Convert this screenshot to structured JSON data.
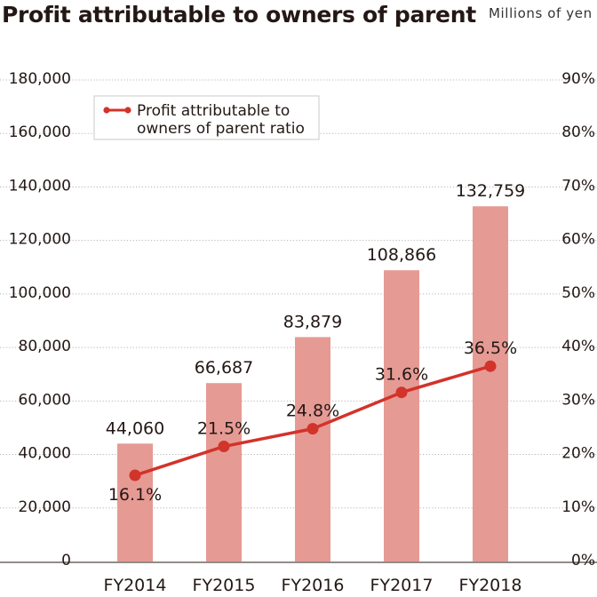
{
  "title": "Profit attributable to owners of parent",
  "unit": "Millions of yen",
  "legend": {
    "line1": "Profit attributable to",
    "line2": "owners of parent ratio"
  },
  "colors": {
    "bar": "#e69a94",
    "line": "#d2332a",
    "grid": "#b5b5b5",
    "text": "#231815"
  },
  "chart_data": {
    "type": "bar",
    "categories": [
      "FY2014",
      "FY2015",
      "FY2016",
      "FY2017",
      "FY2018"
    ],
    "series": [
      {
        "type": "bar",
        "axis": "left",
        "values": [
          44060,
          66687,
          83879,
          108866,
          132759
        ],
        "labels": [
          "44,060",
          "66,687",
          "83,879",
          "108,866",
          "132,759"
        ]
      },
      {
        "name": "Profit attributable to owners of parent ratio",
        "type": "line",
        "axis": "right",
        "values": [
          16.1,
          21.5,
          24.8,
          31.6,
          36.5
        ],
        "labels": [
          "16.1%",
          "21.5%",
          "24.8%",
          "31.6%",
          "36.5%"
        ]
      }
    ],
    "left_axis": {
      "range": [
        0,
        180000
      ],
      "ticks": [
        "0",
        "20,000",
        "40,000",
        "60,000",
        "80,000",
        "100,000",
        "120,000",
        "140,000",
        "160,000",
        "180,000"
      ]
    },
    "right_axis": {
      "range": [
        0,
        90
      ],
      "ticks": [
        "0%",
        "10%",
        "20%",
        "30%",
        "40%",
        "50%",
        "60%",
        "70%",
        "80%",
        "90%"
      ]
    },
    "grid": true,
    "legend_position": "top-left"
  }
}
